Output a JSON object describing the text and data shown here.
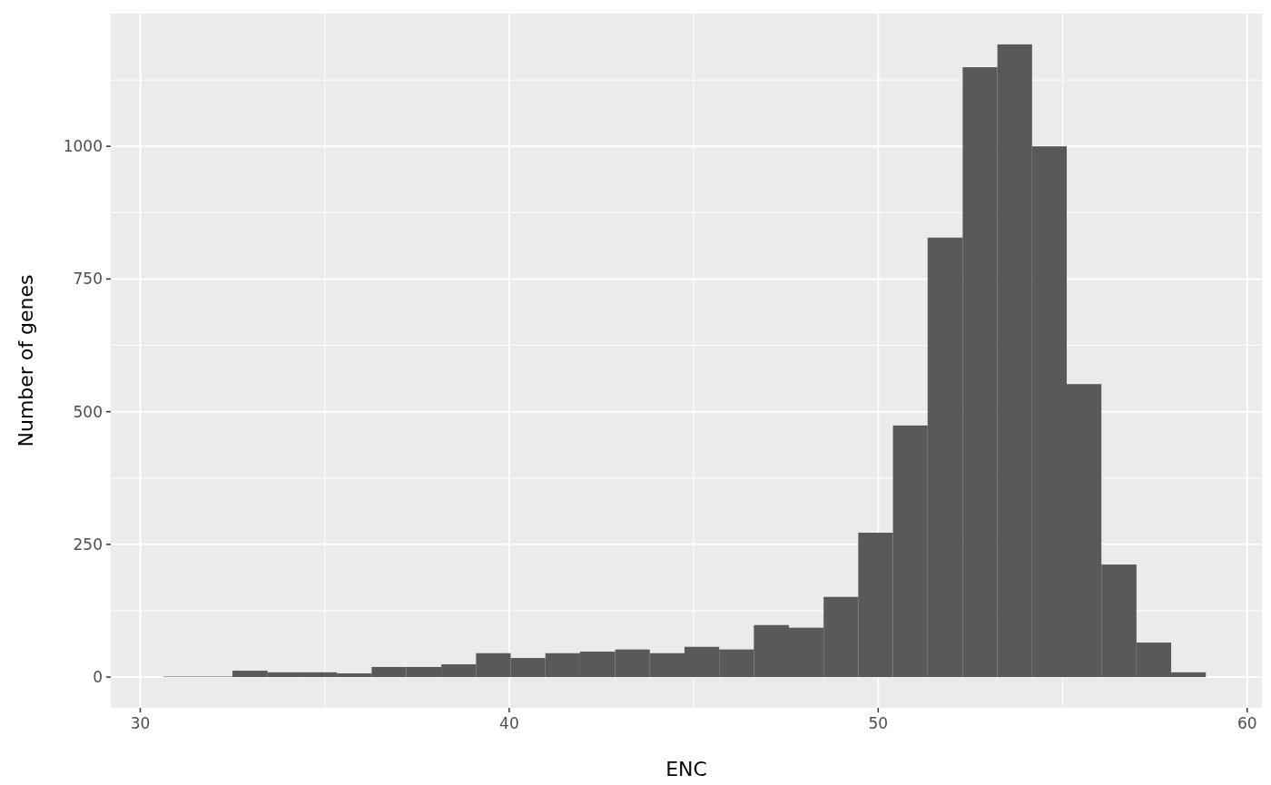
{
  "chart_data": {
    "type": "histogram",
    "xlabel": "ENC",
    "ylabel": "Number of genes",
    "color": "#595959",
    "bins": [
      30.62,
      31.56,
      32.5,
      33.45,
      34.39,
      35.33,
      36.27,
      37.21,
      38.16,
      39.1,
      40.04,
      40.98,
      41.92,
      42.87,
      43.81,
      44.75,
      45.69,
      46.63,
      47.58,
      48.52,
      49.46,
      50.4,
      51.34,
      52.29,
      53.23,
      54.17,
      55.11,
      56.05,
      57.0,
      57.94,
      58.88
    ],
    "values": [
      1,
      1,
      12,
      9,
      9,
      7,
      19,
      19,
      24,
      45,
      36,
      45,
      48,
      52,
      45,
      57,
      52,
      98,
      93,
      151,
      272,
      474,
      828,
      1149,
      1192,
      1000,
      552,
      212,
      65,
      9
    ],
    "xlim": [
      29.2,
      60.4
    ],
    "xticks": [
      30,
      40,
      50,
      60
    ],
    "ylim": [
      -58,
      1250
    ],
    "yticks": [
      0,
      250,
      500,
      750,
      1000
    ],
    "grid": true
  }
}
